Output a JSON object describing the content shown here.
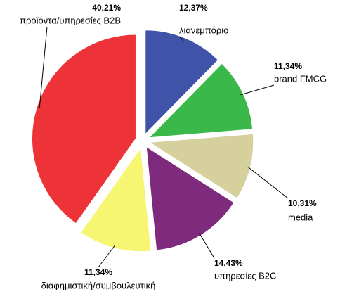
{
  "chart_data": {
    "type": "pie",
    "categories": [
      "λιανεμπόριο",
      "brand FMCG",
      "media",
      "υπηρεσίες B2C",
      "διαφημιστική/συμβουλευτική",
      "προϊόντα/υπηρεσίες B2B"
    ],
    "values": [
      12.37,
      11.34,
      10.31,
      14.43,
      11.34,
      40.21
    ],
    "value_labels": [
      "12,37%",
      "11,34%",
      "10,31%",
      "14,43%",
      "11,34%",
      "40,21%"
    ],
    "colors": [
      "#3f53a8",
      "#3bb84a",
      "#d5d09c",
      "#7e2a7d",
      "#f6f672",
      "#ee3338"
    ]
  }
}
